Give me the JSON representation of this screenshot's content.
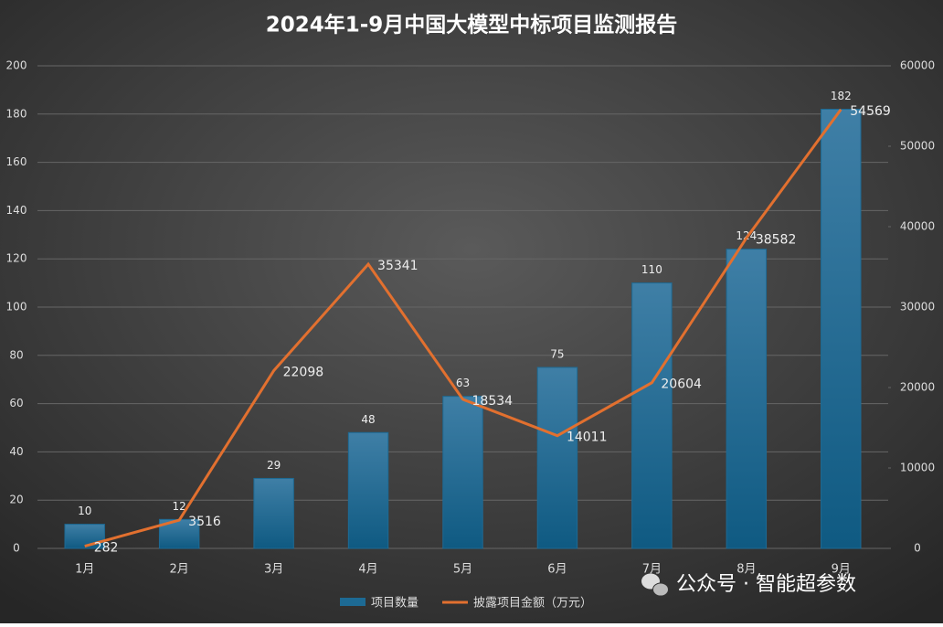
{
  "chart_data": {
    "type": "bar",
    "title": "2024年1-9月中国大模型中标项目监测报告",
    "categories": [
      "1月",
      "2月",
      "3月",
      "4月",
      "5月",
      "6月",
      "7月",
      "8月",
      "9月"
    ],
    "series": [
      {
        "name": "项目数量",
        "type": "bar",
        "color": "#1d6a94",
        "values": [
          10,
          12,
          29,
          48,
          63,
          75,
          110,
          124,
          182
        ]
      },
      {
        "name": "披露项目金额（万元）",
        "type": "line",
        "axis": "y2",
        "color": "#e2702f",
        "values": [
          282,
          3516,
          22098,
          35341,
          18534,
          14011,
          20604,
          38582,
          54569
        ]
      }
    ],
    "ylim": [
      0,
      200
    ],
    "yticks": [
      0,
      20,
      40,
      60,
      80,
      100,
      120,
      140,
      160,
      180,
      200
    ],
    "y2lim": [
      0,
      60000
    ],
    "y2ticks": [
      0,
      10000,
      20000,
      30000,
      40000,
      50000,
      60000
    ],
    "grid": true,
    "legend": "bottom",
    "watermark": "公众号 · 智能超参数"
  }
}
